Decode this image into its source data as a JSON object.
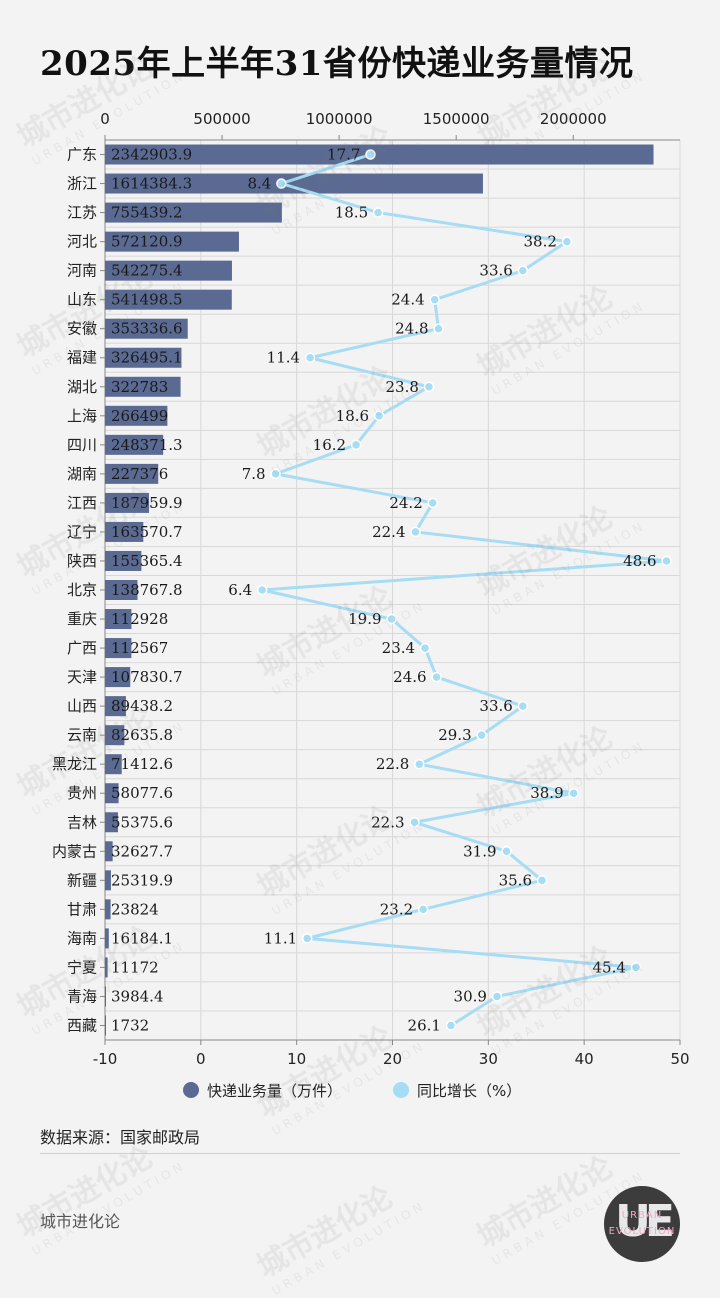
{
  "title": "2025年上半年31省份快递业务量情况",
  "source": "数据来源：国家邮政局",
  "brand": {
    "name": "城市进化论",
    "logo_letters": "UE",
    "logo_word_top": "URBAN",
    "logo_word_bottom": "EVOLUTION",
    "watermark_cn": "城市进化论",
    "watermark_en": "URBAN EVOLUTION"
  },
  "colors": {
    "bar": "#5a6a92",
    "line": "#a6dcf4",
    "grid": "#d8d8d8",
    "background": "#f3f3f3"
  },
  "chart_data": {
    "type": "bar",
    "orientation": "horizontal",
    "title": "2025年上半年31省份快递业务量情况",
    "categories": [
      "广东",
      "浙江",
      "江苏",
      "河北",
      "河南",
      "山东",
      "安徽",
      "福建",
      "湖北",
      "上海",
      "四川",
      "湖南",
      "江西",
      "辽宁",
      "陕西",
      "北京",
      "重庆",
      "广西",
      "天津",
      "山西",
      "云南",
      "黑龙江",
      "贵州",
      "吉林",
      "内蒙古",
      "新疆",
      "甘肃",
      "海南",
      "宁夏",
      "青海",
      "西藏"
    ],
    "series": [
      {
        "name": "快递业务量（万件）",
        "type": "bar",
        "axis": "top",
        "values": [
          2342903.9,
          1614384.3,
          755439.2,
          572120.9,
          542275.4,
          541498.5,
          353336.6,
          326495.1,
          322783,
          266499,
          248371.3,
          227376,
          187959.9,
          163570.7,
          155365.4,
          138767.8,
          112928,
          112567,
          107830.7,
          89438.2,
          82635.8,
          71412.6,
          58077.6,
          55375.6,
          32627.7,
          25319.9,
          23824,
          16184.1,
          11172,
          3984.4,
          1732
        ],
        "labels": [
          "2342903.9",
          "1614384.3",
          "755439.2",
          "572120.9",
          "542275.4",
          "541498.5",
          "353336.6",
          "326495.1",
          "322783",
          "266499",
          "248371.3",
          "227376",
          "187959.9",
          "163570.7",
          "155365.4",
          "138767.8",
          "112928",
          "112567",
          "107830.7",
          "89438.2",
          "82635.8",
          "71412.6",
          "58077.6",
          "55375.6",
          "32627.7",
          "25319.9",
          "23824",
          "16184.1",
          "11172",
          "3984.4",
          "1732"
        ]
      },
      {
        "name": "同比增长（%）",
        "type": "line",
        "axis": "bottom",
        "values": [
          17.7,
          8.4,
          18.5,
          38.2,
          33.6,
          24.4,
          24.8,
          11.4,
          23.8,
          18.6,
          16.2,
          7.8,
          24.2,
          22.4,
          48.6,
          6.4,
          19.9,
          23.4,
          24.6,
          33.6,
          29.3,
          22.8,
          38.9,
          22.3,
          31.9,
          35.6,
          23.2,
          11.1,
          45.4,
          30.9,
          26.1
        ],
        "labels": [
          "17.7",
          "8.4",
          "18.5",
          "38.2",
          "33.6",
          "24.4",
          "24.8",
          "11.4",
          "23.8",
          "18.6",
          "16.2",
          "7.8",
          "24.2",
          "22.4",
          "48.6",
          "6.4",
          "19.9",
          "23.4",
          "24.6",
          "33.6",
          "29.3",
          "22.8",
          "38.9",
          "22.3",
          "31.9",
          "35.6",
          "23.2",
          "11.1",
          "45.4",
          "30.9",
          "26.1"
        ]
      }
    ],
    "top_axis": {
      "range": [
        0,
        2456000
      ],
      "ticks": [
        0,
        500000,
        1000000,
        1500000,
        2000000
      ],
      "tick_labels": [
        "0",
        "500000",
        "1000000",
        "1500000",
        "2000000"
      ]
    },
    "bottom_axis": {
      "range": [
        -10,
        50
      ],
      "ticks": [
        -10,
        0,
        10,
        20,
        30,
        40,
        50
      ],
      "tick_labels": [
        "-10",
        "0",
        "10",
        "20",
        "30",
        "40",
        "50"
      ]
    },
    "grid": true,
    "legend_position": "bottom"
  }
}
